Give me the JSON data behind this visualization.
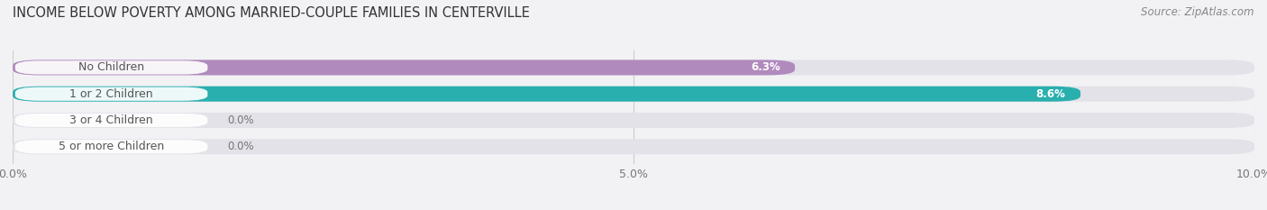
{
  "title": "INCOME BELOW POVERTY AMONG MARRIED-COUPLE FAMILIES IN CENTERVILLE",
  "source": "Source: ZipAtlas.com",
  "categories": [
    "No Children",
    "1 or 2 Children",
    "3 or 4 Children",
    "5 or more Children"
  ],
  "values": [
    6.3,
    8.6,
    0.0,
    0.0
  ],
  "bar_colors": [
    "#b08abd",
    "#2aafaf",
    "#9b9bdc",
    "#f49ab0"
  ],
  "bar_bg_color": "#e8e8ee",
  "label_pill_color": "#ffffff",
  "label_text_color": "#555555",
  "value_label_color_inside": "#ffffff",
  "value_label_color_outside": "#777777",
  "xlim": [
    0,
    10.0
  ],
  "xticks": [
    0.0,
    5.0,
    10.0
  ],
  "xtick_labels": [
    "0.0%",
    "5.0%",
    "10.0%"
  ],
  "bar_height": 0.58,
  "title_fontsize": 10.5,
  "source_fontsize": 8.5,
  "tick_fontsize": 9,
  "label_fontsize": 9,
  "value_fontsize": 8.5,
  "background_color": "#f2f2f5",
  "grid_color": "#cccccc",
  "row_bg_colors": [
    "#e8e8ee",
    "#e8e8ee",
    "#e8e8ee",
    "#e8e8ee"
  ]
}
